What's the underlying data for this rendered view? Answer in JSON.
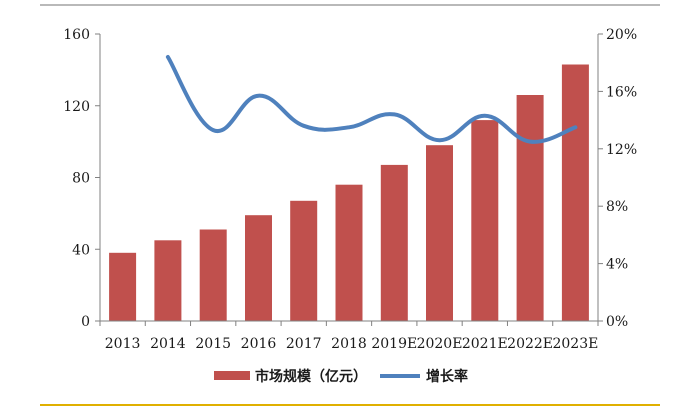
{
  "chart_data": {
    "type": "bar",
    "categories": [
      "2013",
      "2014",
      "2015",
      "2016",
      "2017",
      "2018",
      "2019E",
      "2020E",
      "2021E",
      "2022E",
      "2023E"
    ],
    "series": [
      {
        "name": "市场规模（亿元）",
        "type": "bar",
        "axis": "left",
        "color": "#c0504d",
        "values": [
          38,
          45,
          51,
          59,
          67,
          76,
          87,
          98,
          112,
          126,
          143
        ]
      },
      {
        "name": "增长率",
        "type": "line",
        "axis": "right",
        "color": "#4f81bd",
        "values": [
          null,
          18.4,
          13.3,
          15.7,
          13.6,
          13.5,
          14.4,
          12.6,
          14.3,
          12.5,
          13.5
        ]
      }
    ],
    "ylim_left": [
      0,
      160
    ],
    "yticks_left": [
      "0",
      "40",
      "80",
      "120",
      "160"
    ],
    "ylim_right": [
      0,
      20
    ],
    "yticks_right": [
      "0%",
      "4%",
      "8%",
      "12%",
      "16%",
      "20%"
    ],
    "legend_position": "bottom",
    "grid": false
  },
  "colors": {
    "bar": "#c0504d",
    "line": "#4f81bd",
    "axis": "#808080"
  }
}
